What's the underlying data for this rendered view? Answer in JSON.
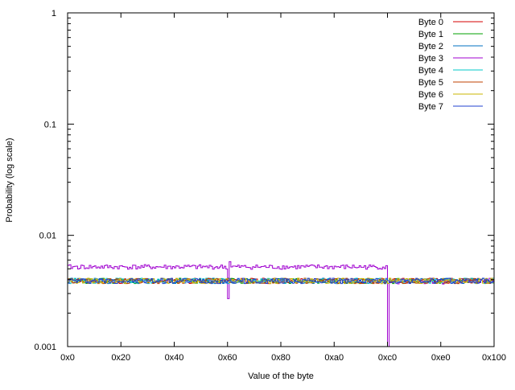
{
  "chart_data": {
    "type": "line",
    "title": "",
    "xlabel": "Value of the byte",
    "ylabel": "Probability (log scale)",
    "xlim": [
      0,
      256
    ],
    "ylim": [
      0.001,
      1
    ],
    "y_scale": "log",
    "grid": false,
    "legend_position": "top-right",
    "x_ticks": [
      {
        "value": 0,
        "label": "0x0"
      },
      {
        "value": 32,
        "label": "0x20"
      },
      {
        "value": 64,
        "label": "0x40"
      },
      {
        "value": 96,
        "label": "0x60"
      },
      {
        "value": 128,
        "label": "0x80"
      },
      {
        "value": 160,
        "label": "0xa0"
      },
      {
        "value": 192,
        "label": "0xc0"
      },
      {
        "value": 224,
        "label": "0xe0"
      },
      {
        "value": 256,
        "label": "0x100"
      }
    ],
    "y_ticks": [
      {
        "value": 0.001,
        "label": "0.001"
      },
      {
        "value": 0.01,
        "label": "0.01"
      },
      {
        "value": 0.1,
        "label": "0.1"
      },
      {
        "value": 1,
        "label": "1"
      }
    ],
    "series": [
      {
        "name": "Byte 0",
        "color": "#d40000",
        "baseline": 0.0039,
        "jitter": 0.00022,
        "seed": 11,
        "overrides": []
      },
      {
        "name": "Byte 1",
        "color": "#00a000",
        "baseline": 0.0039,
        "jitter": 0.00022,
        "seed": 23,
        "overrides": []
      },
      {
        "name": "Byte 2",
        "color": "#0070c0",
        "baseline": 0.0039,
        "jitter": 0.00022,
        "seed": 37,
        "overrides": []
      },
      {
        "name": "Byte 3",
        "color": "#a000d0",
        "baseline": 0.0052,
        "jitter": 0.00025,
        "seed": 41,
        "overrides": [
          {
            "from": 96,
            "to": 96,
            "value": 0.0027
          },
          {
            "from": 97,
            "to": 97,
            "value": 0.0058
          },
          {
            "from": 192,
            "to": 192,
            "value": 0.0009
          },
          {
            "from": 193,
            "to": 255,
            "value": 0.0039
          }
        ]
      },
      {
        "name": "Byte 4",
        "color": "#00c8c8",
        "baseline": 0.0039,
        "jitter": 0.00022,
        "seed": 53,
        "overrides": []
      },
      {
        "name": "Byte 5",
        "color": "#c04000",
        "baseline": 0.0039,
        "jitter": 0.00022,
        "seed": 67,
        "overrides": []
      },
      {
        "name": "Byte 6",
        "color": "#c8b400",
        "baseline": 0.0039,
        "jitter": 0.00022,
        "seed": 79,
        "overrides": []
      },
      {
        "name": "Byte 7",
        "color": "#2040d0",
        "baseline": 0.0039,
        "jitter": 0.00022,
        "seed": 97,
        "overrides": []
      }
    ]
  }
}
